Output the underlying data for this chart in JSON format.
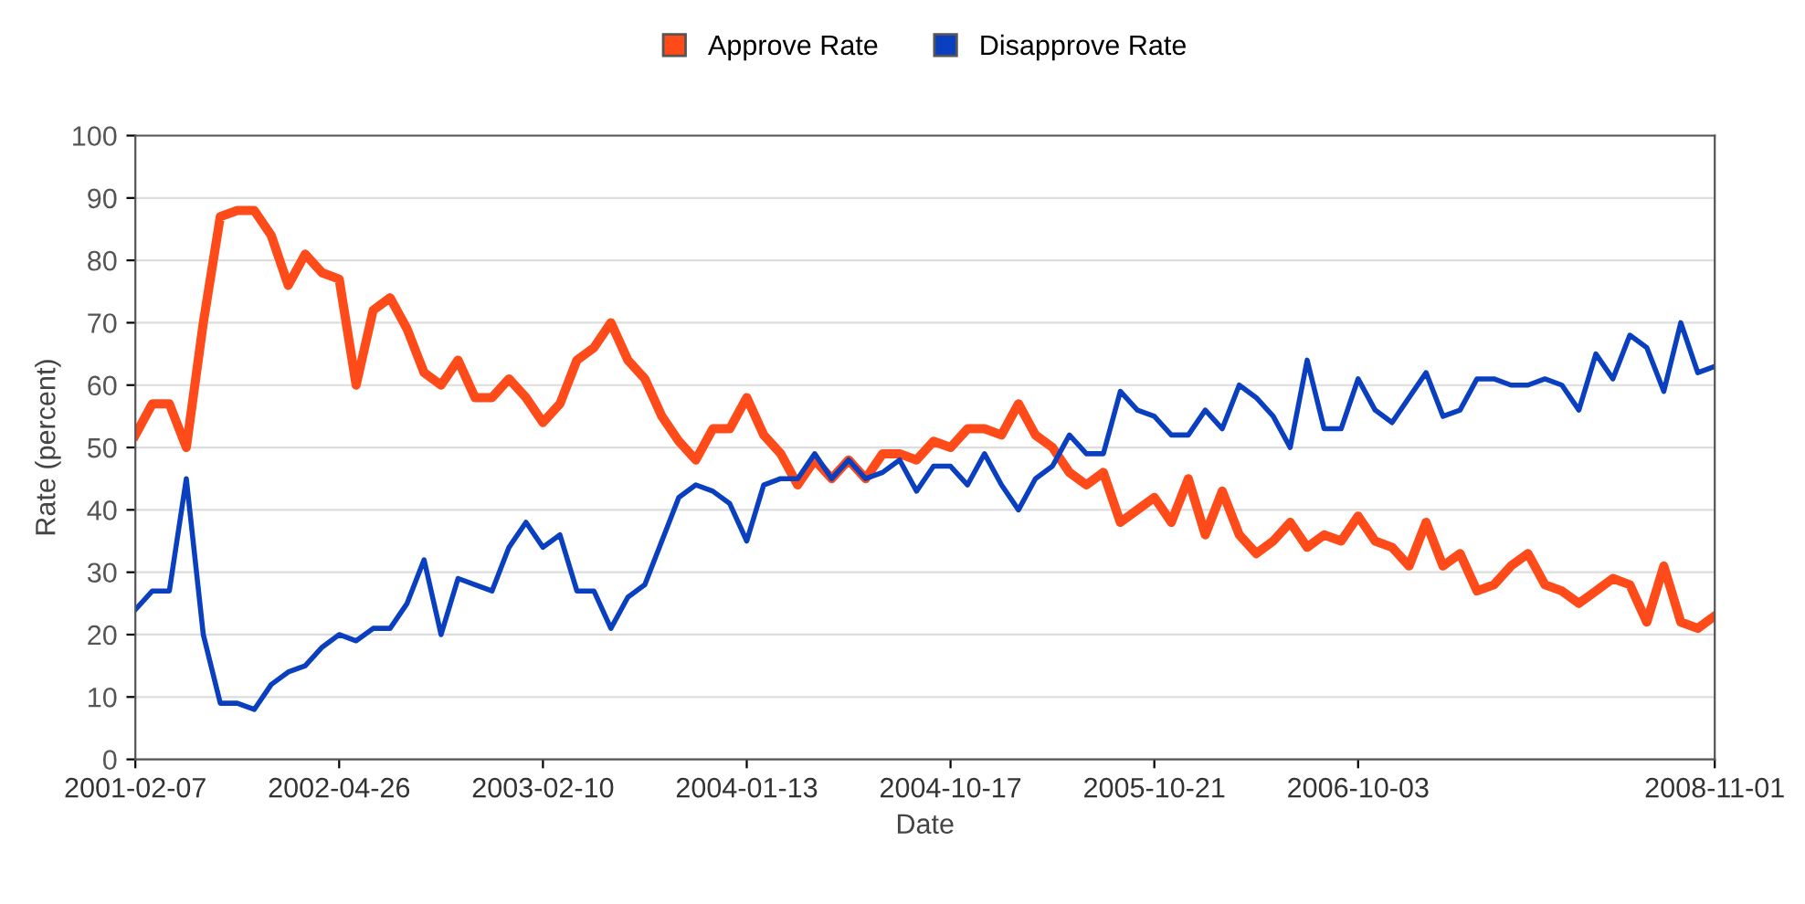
{
  "chart_data": {
    "type": "line",
    "xlabel": "Date",
    "ylabel": "Rate (percent)",
    "categories": [
      "2001-02-07",
      null,
      null,
      null,
      null,
      null,
      null,
      null,
      null,
      null,
      null,
      null,
      "2002-04-26",
      null,
      null,
      null,
      null,
      null,
      null,
      null,
      null,
      null,
      null,
      null,
      "2003-02-10",
      null,
      null,
      null,
      null,
      null,
      null,
      null,
      null,
      null,
      null,
      null,
      "2004-01-13",
      null,
      null,
      null,
      null,
      null,
      null,
      null,
      null,
      null,
      null,
      null,
      "2004-10-17",
      null,
      null,
      null,
      null,
      null,
      null,
      null,
      null,
      null,
      null,
      null,
      "2005-10-21",
      null,
      null,
      null,
      null,
      null,
      null,
      null,
      null,
      null,
      null,
      null,
      "2006-10-03",
      null,
      null,
      null,
      null,
      null,
      null,
      null,
      null,
      null,
      null,
      null,
      null,
      null,
      null,
      null,
      null,
      null,
      null,
      null,
      null,
      "2008-11-01"
    ],
    "series": [
      {
        "name": "Approve Rate",
        "color": "#ff4a1a",
        "values": [
          52,
          57,
          57,
          50,
          70,
          87,
          88,
          88,
          84,
          76,
          81,
          78,
          77,
          60,
          72,
          74,
          69,
          62,
          60,
          64,
          58,
          58,
          61,
          58,
          54,
          57,
          64,
          66,
          70,
          64,
          61,
          55,
          51,
          48,
          53,
          53,
          58,
          52,
          49,
          44,
          48,
          45,
          48,
          45,
          49,
          49,
          48,
          51,
          50,
          53,
          53,
          52,
          57,
          52,
          50,
          46,
          44,
          46,
          38,
          40,
          42,
          38,
          45,
          36,
          43,
          36,
          33,
          35,
          38,
          34,
          36,
          35,
          39,
          35,
          34,
          31,
          38,
          31,
          33,
          27,
          28,
          31,
          33,
          28,
          27,
          25,
          27,
          29,
          28,
          22,
          31,
          22,
          21,
          23
        ]
      },
      {
        "name": "Disapprove Rate",
        "color": "#0a3fc0",
        "values": [
          24,
          27,
          27,
          45,
          20,
          9,
          9,
          8,
          12,
          14,
          15,
          18,
          20,
          19,
          21,
          21,
          25,
          32,
          20,
          29,
          28,
          27,
          34,
          38,
          34,
          36,
          27,
          27,
          21,
          26,
          28,
          35,
          42,
          44,
          43,
          41,
          35,
          44,
          45,
          45,
          49,
          45,
          48,
          45,
          46,
          48,
          43,
          47,
          47,
          44,
          49,
          44,
          40,
          45,
          47,
          52,
          49,
          49,
          59,
          56,
          55,
          52,
          52,
          56,
          53,
          60,
          58,
          55,
          50,
          64,
          53,
          53,
          61,
          56,
          54,
          58,
          62,
          55,
          56,
          61,
          61,
          60,
          60,
          61,
          60,
          56,
          65,
          61,
          68,
          66,
          59,
          70,
          62,
          63
        ]
      }
    ],
    "ylim": [
      0,
      100
    ],
    "yticks": [
      0,
      10,
      20,
      30,
      40,
      50,
      60,
      70,
      80,
      90,
      100
    ],
    "grid": "y",
    "legend": "top"
  }
}
